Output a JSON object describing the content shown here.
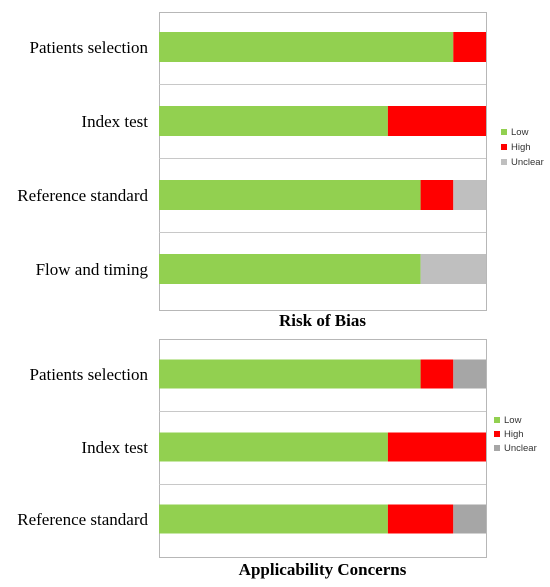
{
  "chart_data": [
    {
      "type": "bar",
      "orientation": "horizontal",
      "stacked": true,
      "title": "Risk of Bias",
      "categories": [
        "Patients selection",
        "Index test",
        "Reference standard",
        "Flow and timing"
      ],
      "series": [
        {
          "name": "Low",
          "color": "#92d050",
          "values": [
            90,
            70,
            80,
            80
          ]
        },
        {
          "name": "High",
          "color": "#ff0000",
          "values": [
            10,
            30,
            10,
            0
          ]
        },
        {
          "name": "Unclear",
          "color": "#bfbfbf",
          "values": [
            0,
            0,
            10,
            20
          ]
        }
      ],
      "xlim": [
        0,
        100
      ],
      "legend_position": "right",
      "grid": true
    },
    {
      "type": "bar",
      "orientation": "horizontal",
      "stacked": true,
      "title": "Applicability Concerns",
      "categories": [
        "Patients selection",
        "Index test",
        "Reference standard"
      ],
      "series": [
        {
          "name": "Low",
          "color": "#92d050",
          "values": [
            80,
            70,
            70
          ]
        },
        {
          "name": "High",
          "color": "#ff0000",
          "values": [
            10,
            30,
            20
          ]
        },
        {
          "name": "Unclear",
          "color": "#a6a6a6",
          "values": [
            10,
            0,
            10
          ]
        }
      ],
      "xlim": [
        0,
        100
      ],
      "legend_position": "right",
      "grid": true
    }
  ]
}
